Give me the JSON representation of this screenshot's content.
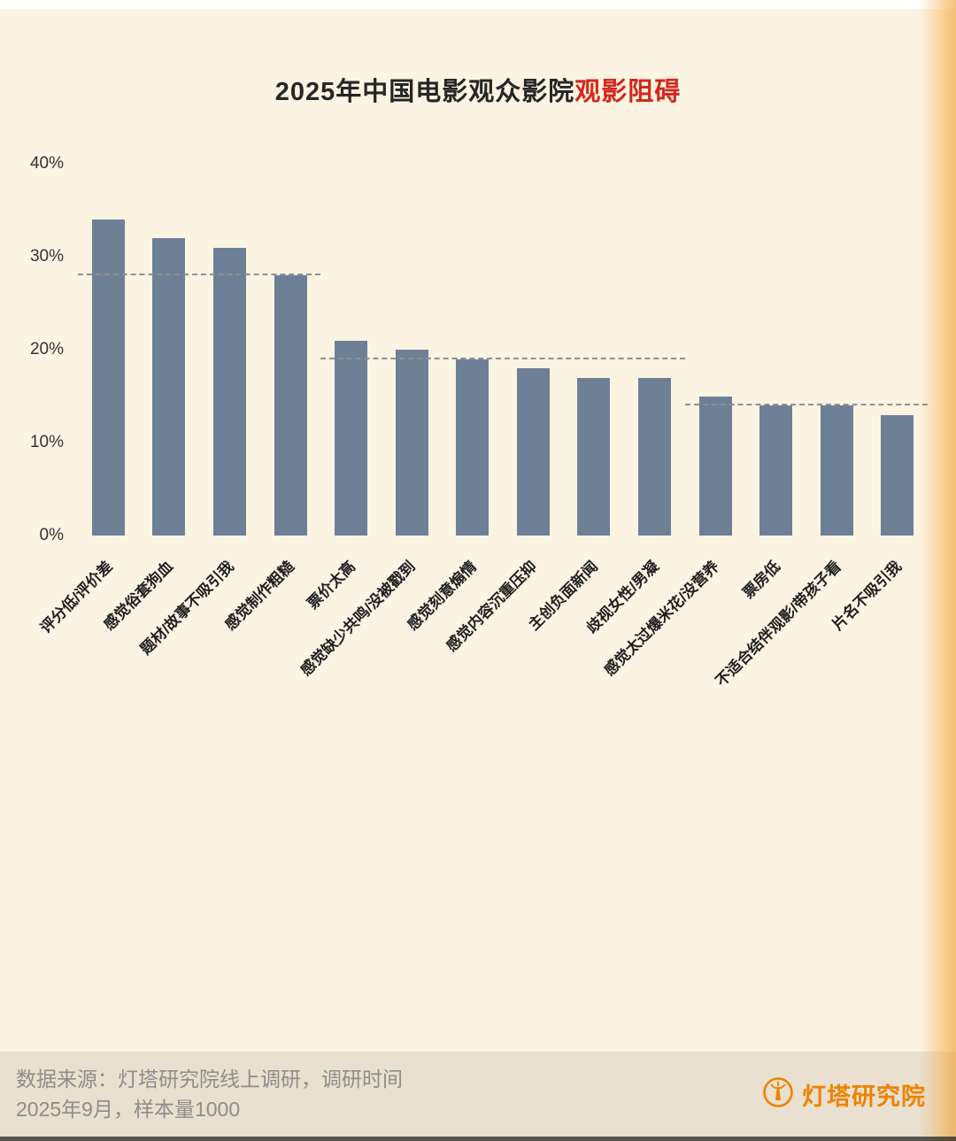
{
  "title": {
    "main": "2025年中国电影观众影院",
    "highlight": "观影阻碍"
  },
  "chart_data": {
    "type": "bar",
    "title": "2025年中国电影观众影院观影阻碍",
    "xlabel": "",
    "ylabel": "",
    "ylim": [
      0,
      40
    ],
    "grid": false,
    "legend": "none",
    "bar_color": "#6d8096",
    "categories": [
      "评分低/评价差",
      "感觉俗套狗血",
      "题材/故事不吸引我",
      "感觉制作粗糙",
      "票价太高",
      "感觉缺少共鸣/没被戳到",
      "感觉刻意煽情",
      "感觉内容沉重压抑",
      "主创负面新闻",
      "歧视女性/男凝",
      "感觉太过爆米花/没营养",
      "票房低",
      "不适合结伴观影/带孩子看",
      "片名不吸引我"
    ],
    "values": [
      34,
      32,
      31,
      28,
      21,
      20,
      19,
      18,
      17,
      17,
      15,
      14,
      14,
      13
    ],
    "yticks": [
      {
        "value": 0,
        "label": "0%"
      },
      {
        "value": 10,
        "label": "10%"
      },
      {
        "value": 20,
        "label": "20%"
      },
      {
        "value": 30,
        "label": "30%"
      },
      {
        "value": 40,
        "label": "40%"
      }
    ],
    "group_lines": [
      {
        "from_index": 0,
        "to_index": 3,
        "value": 28
      },
      {
        "from_index": 4,
        "to_index": 9,
        "value": 19
      },
      {
        "from_index": 10,
        "to_index": 13,
        "value": 14
      }
    ]
  },
  "footer": {
    "source_line1": "数据来源：灯塔研究院线上调研，调研时间",
    "source_line2": "2025年9月，样本量1000",
    "logo_text": "灯塔研究院"
  },
  "colors": {
    "background": "#fcf4e3",
    "bar": "#6d8096",
    "title_highlight": "#d3281c",
    "dashed_line": "#8f8f8f",
    "logo_orange": "#ee8200"
  }
}
